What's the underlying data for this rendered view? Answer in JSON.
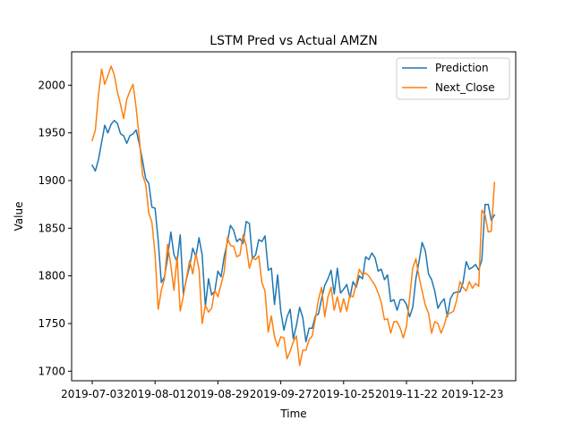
{
  "chart_data": {
    "type": "line",
    "title": "LSTM Pred vs Actual AMZN",
    "xlabel": "Time",
    "ylabel": "Value",
    "x_ticks": [
      "2019-07-03",
      "2019-08-01",
      "2019-08-29",
      "2019-09-27",
      "2019-10-25",
      "2019-11-22",
      "2019-12-23"
    ],
    "y_ticks": [
      1700,
      1750,
      1800,
      1850,
      1900,
      1950,
      2000
    ],
    "ylim": [
      1690,
      2035
    ],
    "grid": false,
    "legend_position": "top-right",
    "series": [
      {
        "name": "Prediction",
        "color": "#1f77b4",
        "values": [
          1916,
          1910,
          1922,
          1940,
          1958,
          1950,
          1959,
          1963,
          1960,
          1949,
          1947,
          1939,
          1947,
          1949,
          1953,
          1938,
          1921,
          1902,
          1897,
          1872,
          1871,
          1837,
          1793,
          1799,
          1819,
          1846,
          1822,
          1815,
          1843,
          1781,
          1797,
          1810,
          1829,
          1820,
          1840,
          1822,
          1768,
          1797,
          1780,
          1784,
          1805,
          1799,
          1820,
          1835,
          1853,
          1848,
          1836,
          1839,
          1834,
          1857,
          1855,
          1818,
          1822,
          1838,
          1836,
          1842,
          1806,
          1808,
          1770,
          1801,
          1763,
          1743,
          1757,
          1765,
          1734,
          1748,
          1767,
          1756,
          1731,
          1745,
          1745,
          1758,
          1760,
          1776,
          1790,
          1797,
          1806,
          1781,
          1808,
          1782,
          1786,
          1791,
          1777,
          1794,
          1788,
          1800,
          1797,
          1820,
          1817,
          1824,
          1819,
          1805,
          1807,
          1796,
          1801,
          1773,
          1775,
          1764,
          1775,
          1775,
          1770,
          1757,
          1767,
          1797,
          1815,
          1835,
          1826,
          1802,
          1796,
          1784,
          1766,
          1772,
          1776,
          1757,
          1776,
          1782,
          1783,
          1783,
          1793,
          1815,
          1807,
          1809,
          1812,
          1806,
          1817,
          1875,
          1875,
          1858,
          1864
        ]
      },
      {
        "name": "Next_Close",
        "color": "#ff7f0e",
        "values": [
          1942,
          1953,
          1990,
          2017,
          2001,
          2010,
          2020,
          2011,
          1993,
          1980,
          1965,
          1985,
          1994,
          2001,
          1976,
          1943,
          1906,
          1896,
          1866,
          1856,
          1822,
          1765,
          1785,
          1797,
          1833,
          1811,
          1785,
          1820,
          1763,
          1779,
          1798,
          1816,
          1802,
          1823,
          1807,
          1750,
          1769,
          1762,
          1766,
          1785,
          1778,
          1791,
          1804,
          1840,
          1832,
          1831,
          1820,
          1822,
          1843,
          1832,
          1808,
          1819,
          1817,
          1821,
          1793,
          1784,
          1741,
          1758,
          1736,
          1726,
          1736,
          1735,
          1713,
          1721,
          1731,
          1737,
          1706,
          1722,
          1722,
          1733,
          1737,
          1755,
          1775,
          1788,
          1757,
          1778,
          1788,
          1764,
          1778,
          1762,
          1776,
          1763,
          1780,
          1778,
          1791,
          1807,
          1801,
          1803,
          1800,
          1795,
          1790,
          1782,
          1772,
          1754,
          1755,
          1740,
          1752,
          1752,
          1745,
          1735,
          1747,
          1777,
          1808,
          1818,
          1799,
          1784,
          1769,
          1761,
          1740,
          1752,
          1750,
          1740,
          1748,
          1760,
          1761,
          1763,
          1775,
          1794,
          1788,
          1784,
          1794,
          1787,
          1792,
          1789,
          1869,
          1864,
          1846,
          1847,
          1898
        ]
      }
    ]
  }
}
